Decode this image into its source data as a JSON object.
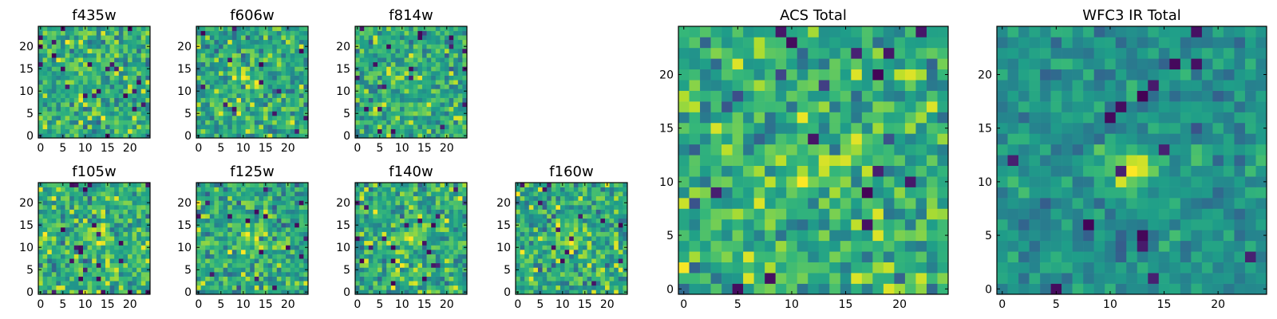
{
  "chart_data": [
    {
      "type": "heatmap",
      "title": "f435w",
      "grid_size": 25,
      "xticks": [
        0,
        5,
        10,
        15,
        20
      ],
      "yticks": [
        0,
        5,
        10,
        15,
        20
      ],
      "xlim": [
        -0.5,
        24.5
      ],
      "ylim": [
        -0.5,
        24.5
      ],
      "colormap": "viridis",
      "signal": {
        "center": [
          12,
          12
        ],
        "strength": 0.0
      },
      "seed": 11
    },
    {
      "type": "heatmap",
      "title": "f606w",
      "grid_size": 25,
      "xticks": [
        0,
        5,
        10,
        15,
        20
      ],
      "yticks": [
        0,
        5,
        10,
        15,
        20
      ],
      "xlim": [
        -0.5,
        24.5
      ],
      "ylim": [
        -0.5,
        24.5
      ],
      "colormap": "viridis",
      "signal": {
        "center": [
          12,
          12
        ],
        "strength": 0.1
      },
      "seed": 23
    },
    {
      "type": "heatmap",
      "title": "f814w",
      "grid_size": 25,
      "xticks": [
        0,
        5,
        10,
        15,
        20
      ],
      "yticks": [
        0,
        5,
        10,
        15,
        20
      ],
      "xlim": [
        -0.5,
        24.5
      ],
      "ylim": [
        -0.5,
        24.5
      ],
      "colormap": "viridis",
      "signal": {
        "center": [
          12,
          12
        ],
        "strength": 0.15
      },
      "seed": 37
    },
    {
      "type": "heatmap",
      "title": "f105w",
      "grid_size": 25,
      "xticks": [
        0,
        5,
        10,
        15,
        20
      ],
      "yticks": [
        0,
        5,
        10,
        15,
        20
      ],
      "xlim": [
        -0.5,
        24.5
      ],
      "ylim": [
        -0.5,
        24.5
      ],
      "colormap": "viridis",
      "signal": {
        "center": [
          12,
          12
        ],
        "strength": 0.35
      },
      "seed": 41
    },
    {
      "type": "heatmap",
      "title": "f125w",
      "grid_size": 25,
      "xticks": [
        0,
        5,
        10,
        15,
        20
      ],
      "yticks": [
        0,
        5,
        10,
        15,
        20
      ],
      "xlim": [
        -0.5,
        24.5
      ],
      "ylim": [
        -0.5,
        24.5
      ],
      "colormap": "viridis",
      "signal": {
        "center": [
          12,
          12
        ],
        "strength": 0.3
      },
      "seed": 53
    },
    {
      "type": "heatmap",
      "title": "f140w",
      "grid_size": 25,
      "xticks": [
        0,
        5,
        10,
        15,
        20
      ],
      "yticks": [
        0,
        5,
        10,
        15,
        20
      ],
      "xlim": [
        -0.5,
        24.5
      ],
      "ylim": [
        -0.5,
        24.5
      ],
      "colormap": "viridis",
      "signal": {
        "center": [
          12,
          12
        ],
        "strength": 0.35
      },
      "seed": 67
    },
    {
      "type": "heatmap",
      "title": "f160w",
      "grid_size": 25,
      "xticks": [
        0,
        5,
        10,
        15,
        20
      ],
      "yticks": [
        0,
        5,
        10,
        15,
        20
      ],
      "xlim": [
        -0.5,
        24.5
      ],
      "ylim": [
        -0.5,
        24.5
      ],
      "colormap": "viridis",
      "signal": {
        "center": [
          12,
          12
        ],
        "strength": 0.35
      },
      "seed": 79
    },
    {
      "type": "heatmap",
      "title": "ACS Total",
      "grid_size": 25,
      "xticks": [
        0,
        5,
        10,
        15,
        20
      ],
      "yticks": [
        0,
        5,
        10,
        15,
        20
      ],
      "xlim": [
        -0.5,
        24.5
      ],
      "ylim": [
        -0.5,
        24.5
      ],
      "colormap": "viridis",
      "signal": {
        "center": [
          12,
          11
        ],
        "strength": 0.15
      },
      "seed": 97
    },
    {
      "type": "heatmap",
      "title": "WFC3 IR Total",
      "grid_size": 25,
      "xticks": [
        0,
        5,
        10,
        15,
        20
      ],
      "yticks": [
        0,
        5,
        10,
        15,
        20
      ],
      "xlim": [
        -0.5,
        24.5
      ],
      "ylim": [
        -0.5,
        24.5
      ],
      "colormap": "viridis",
      "signal": {
        "center": [
          12,
          11
        ],
        "strength": 0.9
      },
      "seed": 131
    }
  ]
}
